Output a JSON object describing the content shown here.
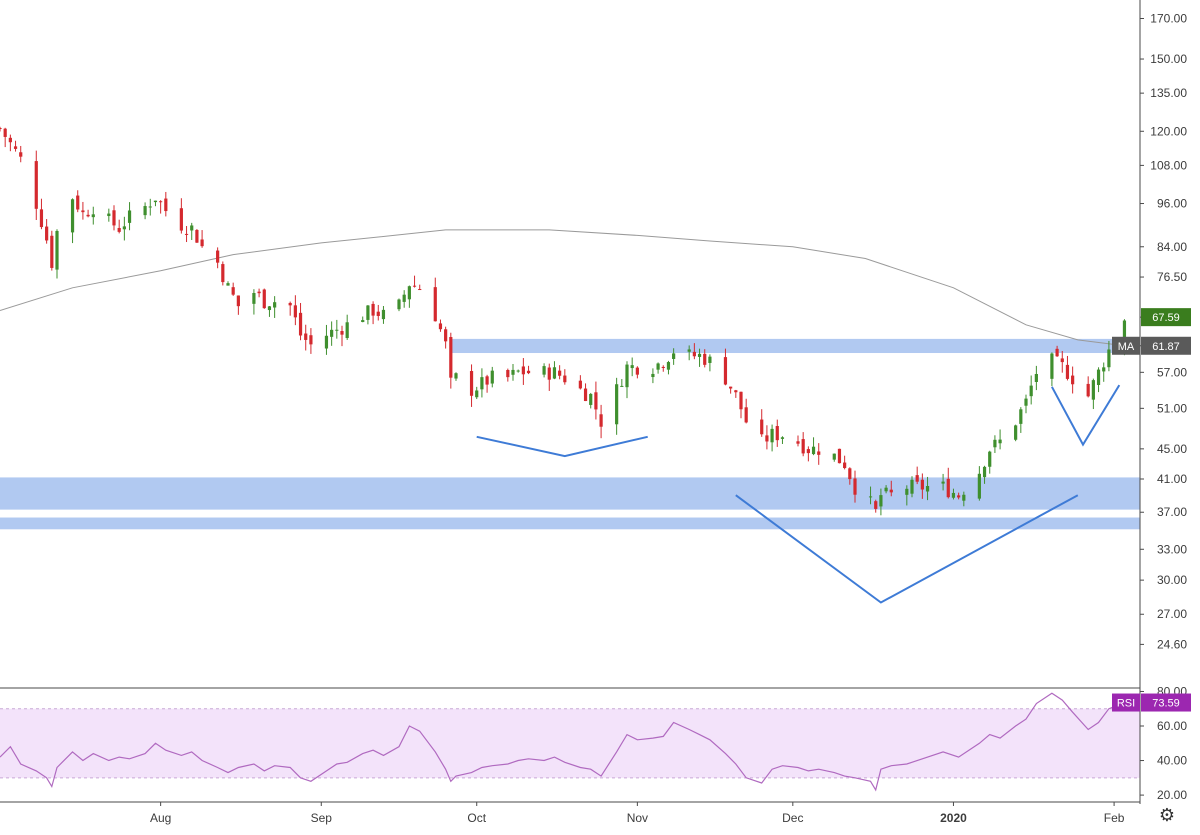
{
  "chart_data": [
    {
      "type": "candlestick",
      "title": "",
      "y_axis": {
        "scale": "log",
        "ylim": [
          21.5,
          180
        ],
        "ticks": [
          170,
          150,
          135,
          120,
          108,
          96,
          84,
          76.5,
          67.59,
          61.87,
          57,
          51,
          45,
          41,
          37,
          33,
          30,
          27,
          24.6
        ],
        "tick_labels": [
          "170.00",
          "150.00",
          "135.00",
          "120.00",
          "108.00",
          "96.00",
          "84.00",
          "76.50",
          "67.59",
          "61.87",
          "57.00",
          "51.00",
          "45.00",
          "41.00",
          "37.00",
          "33.00",
          "30.00",
          "27.00",
          "24.60"
        ]
      },
      "x_axis": {
        "xlim": [
          "2019-07-01",
          "2020-02-06"
        ],
        "tick_labels": [
          "Aug",
          "Sep",
          "Oct",
          "Nov",
          "Dec",
          "2020",
          "Feb"
        ],
        "tick_dates": [
          "2019-08-01",
          "2019-09-01",
          "2019-10-01",
          "2019-11-01",
          "2019-12-01",
          "2020-01-01",
          "2020-02-01"
        ]
      },
      "grid": false,
      "price_series": {
        "close_path": [
          [
            "2019-07-01",
            121
          ],
          [
            "2019-07-05",
            110
          ],
          [
            "2019-07-08",
            96
          ],
          [
            "2019-07-10",
            86
          ],
          [
            "2019-07-11",
            80
          ],
          [
            "2019-07-12",
            88
          ],
          [
            "2019-07-15",
            98
          ],
          [
            "2019-07-17",
            93
          ],
          [
            "2019-07-19",
            95
          ],
          [
            "2019-07-22",
            91
          ],
          [
            "2019-07-24",
            89
          ],
          [
            "2019-07-26",
            92
          ],
          [
            "2019-07-29",
            95
          ],
          [
            "2019-07-31",
            98
          ],
          [
            "2019-08-02",
            94
          ],
          [
            "2019-08-05",
            90
          ],
          [
            "2019-08-07",
            89
          ],
          [
            "2019-08-09",
            84
          ],
          [
            "2019-08-12",
            80
          ],
          [
            "2019-08-14",
            74
          ],
          [
            "2019-08-16",
            70
          ],
          [
            "2019-08-19",
            73
          ],
          [
            "2019-08-21",
            71
          ],
          [
            "2019-08-23",
            71
          ],
          [
            "2019-08-26",
            70
          ],
          [
            "2019-08-28",
            64
          ],
          [
            "2019-08-30",
            62
          ],
          [
            "2019-09-02",
            64
          ],
          [
            "2019-09-04",
            65
          ],
          [
            "2019-09-06",
            66
          ],
          [
            "2019-09-09",
            68
          ],
          [
            "2019-09-11",
            69
          ],
          [
            "2019-09-13",
            68
          ],
          [
            "2019-09-16",
            70
          ],
          [
            "2019-09-18",
            75
          ],
          [
            "2019-09-20",
            74
          ],
          [
            "2019-09-23",
            68
          ],
          [
            "2019-09-25",
            62
          ],
          [
            "2019-09-26",
            55
          ],
          [
            "2019-09-27",
            56
          ],
          [
            "2019-09-30",
            54
          ],
          [
            "2019-10-02",
            55
          ],
          [
            "2019-10-04",
            56
          ],
          [
            "2019-10-07",
            56
          ],
          [
            "2019-10-09",
            57
          ],
          [
            "2019-10-11",
            57
          ],
          [
            "2019-10-14",
            57
          ],
          [
            "2019-10-16",
            57
          ],
          [
            "2019-10-18",
            56
          ],
          [
            "2019-10-21",
            54
          ],
          [
            "2019-10-23",
            53
          ],
          [
            "2019-10-25",
            49
          ],
          [
            "2019-10-28",
            54
          ],
          [
            "2019-10-30",
            58
          ],
          [
            "2019-11-01",
            58
          ],
          [
            "2019-11-04",
            58
          ],
          [
            "2019-11-06",
            59
          ],
          [
            "2019-11-08",
            61
          ],
          [
            "2019-11-11",
            60
          ],
          [
            "2019-11-13",
            60
          ],
          [
            "2019-11-15",
            59
          ],
          [
            "2019-11-18",
            56
          ],
          [
            "2019-11-20",
            53
          ],
          [
            "2019-11-22",
            49
          ],
          [
            "2019-11-25",
            46
          ],
          [
            "2019-11-27",
            47
          ],
          [
            "2019-11-29",
            47
          ],
          [
            "2019-12-02",
            46
          ],
          [
            "2019-12-04",
            45
          ],
          [
            "2019-12-06",
            45
          ],
          [
            "2019-12-09",
            44
          ],
          [
            "2019-12-11",
            43
          ],
          [
            "2019-12-13",
            40
          ],
          [
            "2019-12-16",
            38
          ],
          [
            "2019-12-17",
            37
          ],
          [
            "2019-12-18",
            39
          ],
          [
            "2019-12-20",
            39
          ],
          [
            "2019-12-23",
            40
          ],
          [
            "2019-12-26",
            40
          ],
          [
            "2019-12-30",
            40
          ],
          [
            "2020-01-02",
            39
          ],
          [
            "2020-01-06",
            42
          ],
          [
            "2020-01-08",
            45
          ],
          [
            "2020-01-10",
            46
          ],
          [
            "2020-01-13",
            49
          ],
          [
            "2020-01-15",
            52
          ],
          [
            "2020-01-17",
            57
          ],
          [
            "2020-01-20",
            59
          ],
          [
            "2020-01-22",
            58
          ],
          [
            "2020-01-24",
            56
          ],
          [
            "2020-01-27",
            53
          ],
          [
            "2020-01-29",
            57
          ],
          [
            "2020-01-31",
            61
          ],
          [
            "2020-02-03",
            67.59
          ]
        ]
      },
      "moving_average": {
        "name": "MA",
        "last_value": 61.87,
        "last_value_label": "61.87",
        "path": [
          [
            "2019-07-01",
            69
          ],
          [
            "2019-07-15",
            74
          ],
          [
            "2019-08-01",
            78
          ],
          [
            "2019-08-15",
            82
          ],
          [
            "2019-09-01",
            85
          ],
          [
            "2019-09-15",
            87
          ],
          [
            "2019-09-25",
            88.5
          ],
          [
            "2019-10-15",
            88.5
          ],
          [
            "2019-11-01",
            87
          ],
          [
            "2019-11-15",
            85.5
          ],
          [
            "2019-12-01",
            84
          ],
          [
            "2019-12-15",
            81
          ],
          [
            "2020-01-01",
            74
          ],
          [
            "2020-01-15",
            66
          ],
          [
            "2020-01-25",
            63
          ],
          [
            "2020-02-03",
            61.87
          ]
        ],
        "color": "#9a9a9a"
      },
      "last_price": {
        "value": 67.59,
        "label": "67.59",
        "color": "#3a7d1e"
      },
      "annotations": {
        "zones": [
          {
            "y_low": 60.5,
            "y_high": 63.2,
            "x_start": "2019-09-26",
            "x_end": "2020-02-05"
          },
          {
            "y_low": 37.3,
            "y_high": 41.2,
            "x_start": "2019-07-01",
            "x_end": "2020-02-06"
          },
          {
            "y_low": 35.1,
            "y_high": 36.4,
            "x_start": "2019-07-01",
            "x_end": "2020-02-06"
          }
        ],
        "lines": [
          {
            "points": [
              [
                "2019-10-01",
                46.7
              ],
              [
                "2019-10-18",
                44
              ],
              [
                "2019-11-03",
                46.7
              ]
            ]
          },
          {
            "points": [
              [
                "2019-11-20",
                39
              ],
              [
                "2019-12-18",
                28
              ],
              [
                "2020-01-25",
                39
              ]
            ]
          },
          {
            "points": [
              [
                "2020-01-20",
                54.5
              ],
              [
                "2020-01-26",
                45.6
              ],
              [
                "2020-02-02",
                54.8
              ]
            ]
          }
        ],
        "color": "#a9c3f0",
        "line_color": "#3e7bd6"
      },
      "colors": {
        "up": "#3f8f2e",
        "down": "#d4292e"
      }
    },
    {
      "type": "line",
      "title": "",
      "series": [
        {
          "name": "RSI",
          "last_value": 73.59,
          "last_value_label": "73.59",
          "color": "#b06ac0",
          "points": [
            [
              "2019-07-01",
              42
            ],
            [
              "2019-07-03",
              48
            ],
            [
              "2019-07-05",
              38
            ],
            [
              "2019-07-08",
              34
            ],
            [
              "2019-07-10",
              30
            ],
            [
              "2019-07-11",
              25
            ],
            [
              "2019-07-12",
              36
            ],
            [
              "2019-07-15",
              45
            ],
            [
              "2019-07-17",
              40
            ],
            [
              "2019-07-19",
              44
            ],
            [
              "2019-07-22",
              40
            ],
            [
              "2019-07-24",
              42
            ],
            [
              "2019-07-26",
              41
            ],
            [
              "2019-07-29",
              44
            ],
            [
              "2019-07-31",
              50
            ],
            [
              "2019-08-02",
              46
            ],
            [
              "2019-08-05",
              43
            ],
            [
              "2019-08-07",
              45
            ],
            [
              "2019-08-09",
              40
            ],
            [
              "2019-08-12",
              36
            ],
            [
              "2019-08-14",
              33
            ],
            [
              "2019-08-16",
              36
            ],
            [
              "2019-08-19",
              38
            ],
            [
              "2019-08-21",
              34
            ],
            [
              "2019-08-23",
              37
            ],
            [
              "2019-08-26",
              36
            ],
            [
              "2019-08-28",
              30
            ],
            [
              "2019-08-30",
              28
            ],
            [
              "2019-09-02",
              34
            ],
            [
              "2019-09-04",
              38
            ],
            [
              "2019-09-06",
              39
            ],
            [
              "2019-09-09",
              44
            ],
            [
              "2019-09-11",
              46
            ],
            [
              "2019-09-13",
              43
            ],
            [
              "2019-09-16",
              48
            ],
            [
              "2019-09-18",
              60
            ],
            [
              "2019-09-20",
              57
            ],
            [
              "2019-09-23",
              45
            ],
            [
              "2019-09-25",
              35
            ],
            [
              "2019-09-26",
              28
            ],
            [
              "2019-09-27",
              31
            ],
            [
              "2019-09-30",
              33
            ],
            [
              "2019-10-02",
              36
            ],
            [
              "2019-10-04",
              37
            ],
            [
              "2019-10-07",
              38
            ],
            [
              "2019-10-09",
              40
            ],
            [
              "2019-10-11",
              41
            ],
            [
              "2019-10-14",
              40
            ],
            [
              "2019-10-16",
              42
            ],
            [
              "2019-10-18",
              39
            ],
            [
              "2019-10-21",
              36
            ],
            [
              "2019-10-23",
              35
            ],
            [
              "2019-10-25",
              31
            ],
            [
              "2019-10-28",
              45
            ],
            [
              "2019-10-30",
              55
            ],
            [
              "2019-11-01",
              52
            ],
            [
              "2019-11-04",
              53
            ],
            [
              "2019-11-06",
              54
            ],
            [
              "2019-11-08",
              62
            ],
            [
              "2019-11-11",
              58
            ],
            [
              "2019-11-13",
              55
            ],
            [
              "2019-11-15",
              52
            ],
            [
              "2019-11-18",
              44
            ],
            [
              "2019-11-20",
              38
            ],
            [
              "2019-11-22",
              30
            ],
            [
              "2019-11-25",
              27
            ],
            [
              "2019-11-27",
              35
            ],
            [
              "2019-11-29",
              37
            ],
            [
              "2019-12-02",
              36
            ],
            [
              "2019-12-04",
              34
            ],
            [
              "2019-12-06",
              35
            ],
            [
              "2019-12-09",
              33
            ],
            [
              "2019-12-11",
              31
            ],
            [
              "2019-12-13",
              30
            ],
            [
              "2019-12-16",
              28
            ],
            [
              "2019-12-17",
              23
            ],
            [
              "2019-12-18",
              35
            ],
            [
              "2019-12-20",
              37
            ],
            [
              "2019-12-23",
              38
            ],
            [
              "2019-12-26",
              41
            ],
            [
              "2019-12-30",
              45
            ],
            [
              "2020-01-02",
              42
            ],
            [
              "2020-01-06",
              50
            ],
            [
              "2020-01-08",
              55
            ],
            [
              "2020-01-10",
              53
            ],
            [
              "2020-01-13",
              60
            ],
            [
              "2020-01-15",
              64
            ],
            [
              "2020-01-17",
              73
            ],
            [
              "2020-01-20",
              79
            ],
            [
              "2020-01-22",
              75
            ],
            [
              "2020-01-24",
              68
            ],
            [
              "2020-01-27",
              58
            ],
            [
              "2020-01-29",
              62
            ],
            [
              "2020-01-31",
              70
            ],
            [
              "2020-02-03",
              73.59
            ]
          ]
        }
      ],
      "ylim": [
        16,
        82
      ],
      "y_ticks": [
        80,
        60,
        40,
        20
      ],
      "y_tick_labels": [
        "80.00",
        "60.00",
        "40.00",
        "20.00"
      ],
      "band": {
        "low": 30,
        "high": 70,
        "color": "#f3e3fa"
      }
    }
  ],
  "toolbar": {
    "settings_icon": "gear-icon"
  }
}
